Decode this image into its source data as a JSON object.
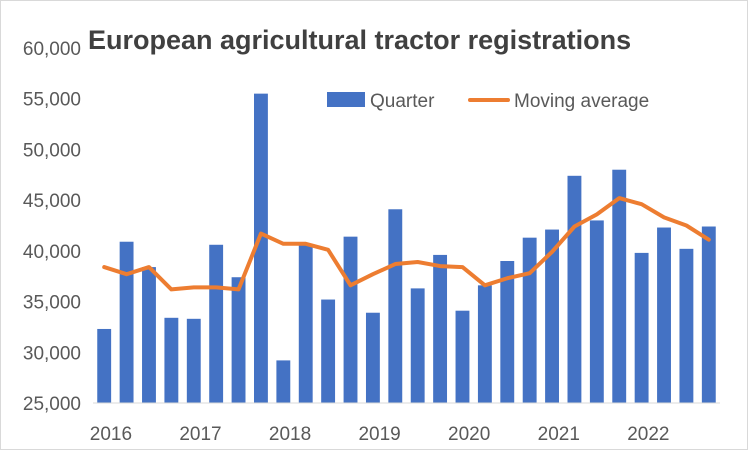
{
  "chart_data": {
    "type": "bar",
    "title": "European agricultural tractor registrations",
    "ylim": [
      25000,
      60000
    ],
    "yticks": [
      25000,
      30000,
      35000,
      40000,
      45000,
      50000,
      55000,
      60000
    ],
    "ytick_labels": [
      "25,000",
      "30,000",
      "35,000",
      "40,000",
      "45,000",
      "50,000",
      "55,000",
      "60,000"
    ],
    "year_labels": [
      "2016",
      "2017",
      "2018",
      "2019",
      "2020",
      "2021",
      "2022"
    ],
    "legend_position": "top-right",
    "series": [
      {
        "name": "Quarter",
        "type": "bar",
        "color": "#4472c4",
        "values": [
          32300,
          40900,
          38400,
          33400,
          33300,
          40600,
          37400,
          55500,
          29200,
          40600,
          35200,
          41400,
          33900,
          44100,
          36300,
          39600,
          34100,
          36600,
          39000,
          41300,
          42100,
          47400,
          43000,
          48000,
          39800,
          42300,
          40200,
          42400
        ]
      },
      {
        "name": "Moving average",
        "type": "line",
        "color": "#ed7d31",
        "values": [
          38400,
          37700,
          38400,
          36200,
          36400,
          36400,
          36200,
          41700,
          40700,
          40700,
          40100,
          36600,
          37700,
          38700,
          38900,
          38500,
          38400,
          36600,
          37300,
          37800,
          39900,
          42400,
          43600,
          45200,
          44600,
          43300,
          42500,
          41100
        ]
      }
    ]
  }
}
